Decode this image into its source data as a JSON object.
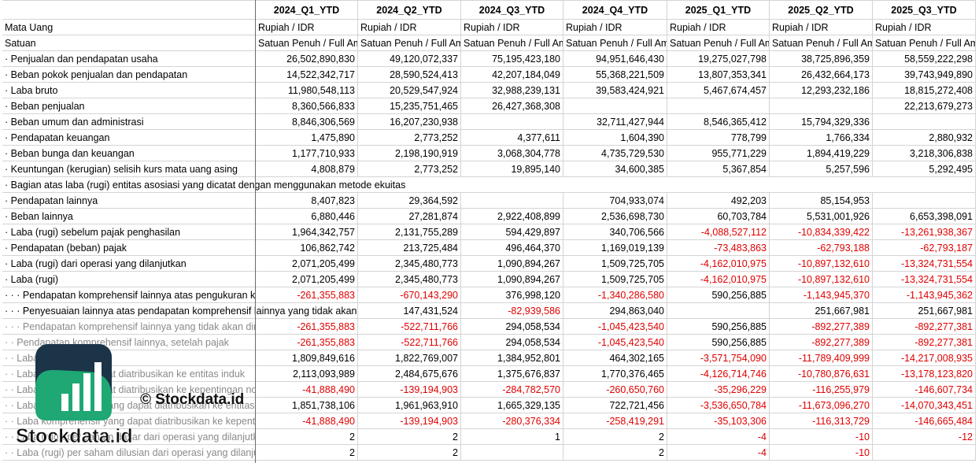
{
  "table": {
    "columns": [
      "2024_Q1_YTD",
      "2024_Q2_YTD",
      "2024_Q3_YTD",
      "2024_Q4_YTD",
      "2025_Q1_YTD",
      "2025_Q2_YTD",
      "2025_Q3_YTD"
    ],
    "rows": [
      {
        "label": "Mata Uang",
        "values": [
          "Rupiah / IDR",
          "Rupiah / IDR",
          "Rupiah / IDR",
          "Rupiah / IDR",
          "Rupiah / IDR",
          "Rupiah / IDR",
          "Rupiah / IDR"
        ]
      },
      {
        "label": "Satuan",
        "values": [
          "Satuan Penuh / Full Amount",
          "Satuan Penuh / Full Amount",
          "Satuan Penuh / Full Amount",
          "Satuan Penuh / Full Amount",
          "Satuan Penuh / Full Amount",
          "Satuan Penuh / Full Amount",
          "Satuan Penuh / Full Amount"
        ]
      },
      {
        "label": "· Penjualan dan pendapatan usaha",
        "values": [
          "26,502,890,830",
          "49,120,072,337",
          "75,195,423,180",
          "94,951,646,430",
          "19,275,027,798",
          "38,725,896,359",
          "58,559,222,298"
        ]
      },
      {
        "label": "· Beban pokok penjualan dan pendapatan",
        "values": [
          "14,522,342,717",
          "28,590,524,413",
          "42,207,184,049",
          "55,368,221,509",
          "13,807,353,341",
          "26,432,664,173",
          "39,743,949,890"
        ]
      },
      {
        "label": "· Laba bruto",
        "values": [
          "11,980,548,113",
          "20,529,547,924",
          "32,988,239,131",
          "39,583,424,921",
          "5,467,674,457",
          "12,293,232,186",
          "18,815,272,408"
        ]
      },
      {
        "label": "· Beban penjualan",
        "values": [
          "8,360,566,833",
          "15,235,751,465",
          "26,427,368,308",
          null,
          null,
          null,
          "22,213,679,273"
        ]
      },
      {
        "label": "· Beban umum dan administrasi",
        "values": [
          "8,846,306,569",
          "16,207,230,938",
          null,
          "32,711,427,944",
          "8,546,365,412",
          "15,794,329,336",
          null
        ]
      },
      {
        "label": "· Pendapatan keuangan",
        "values": [
          "1,475,890",
          "2,773,252",
          "4,377,611",
          "1,604,390",
          "778,799",
          "1,766,334",
          "2,880,932"
        ]
      },
      {
        "label": "· Beban bunga dan keuangan",
        "values": [
          "1,177,710,933",
          "2,198,190,919",
          "3,068,304,778",
          "4,735,729,530",
          "955,771,229",
          "1,894,419,229",
          "3,218,306,838"
        ]
      },
      {
        "label": "· Keuntungan (kerugian) selisih kurs mata uang asing",
        "values": [
          "4,808,879",
          "2,773,252",
          "19,895,140",
          "34,600,385",
          "5,367,854",
          "5,257,596",
          "5,292,495"
        ]
      },
      {
        "label": "· Bagian atas laba (rugi) entitas asosiasi yang dicatat dengan menggunakan metode ekuitas",
        "values": [
          null,
          null,
          null,
          null,
          null,
          null,
          null
        ]
      },
      {
        "label": "· Pendapatan lainnya",
        "values": [
          "8,407,823",
          "29,364,592",
          null,
          "704,933,074",
          "492,203",
          "85,154,953",
          null
        ]
      },
      {
        "label": "· Beban lainnya",
        "values": [
          "6,880,446",
          "27,281,874",
          "2,922,408,899",
          "2,536,698,730",
          "60,703,784",
          "5,531,001,926",
          "6,653,398,091"
        ]
      },
      {
        "label": "· Laba (rugi) sebelum pajak penghasilan",
        "values": [
          "1,964,342,757",
          "2,131,755,289",
          "594,429,897",
          "340,706,566",
          "-4,088,527,112",
          "-10,834,339,422",
          "-13,261,938,367"
        ]
      },
      {
        "label": "· Pendapatan (beban) pajak",
        "values": [
          "106,862,742",
          "213,725,484",
          "496,464,370",
          "1,169,019,139",
          "-73,483,863",
          "-62,793,188",
          "-62,793,187"
        ]
      },
      {
        "label": "· Laba (rugi) dari operasi yang dilanjutkan",
        "values": [
          "2,071,205,499",
          "2,345,480,773",
          "1,090,894,267",
          "1,509,725,705",
          "-4,162,010,975",
          "-10,897,132,610",
          "-13,324,731,554"
        ]
      },
      {
        "label": "· Laba (rugi)",
        "values": [
          "2,071,205,499",
          "2,345,480,773",
          "1,090,894,267",
          "1,509,725,705",
          "-4,162,010,975",
          "-10,897,132,610",
          "-13,324,731,554"
        ]
      },
      {
        "label": "· · · Pendapatan komprehensif lainnya atas pengukuran kembali",
        "values": [
          "-261,355,883",
          "-670,143,290",
          "376,998,120",
          "-1,340,286,580",
          "590,256,885",
          "-1,143,945,370",
          "-1,143,945,362"
        ]
      },
      {
        "label": "· · · Penyesuaian lainnya atas pendapatan komprehensif lainnya yang tidak akan direklasifikasi",
        "values": [
          null,
          "147,431,524",
          "-82,939,586",
          "294,863,040",
          null,
          "251,667,981",
          "251,667,981"
        ]
      },
      {
        "label": "· · · Pendapatan komprehensif lainnya yang tidak akan direklasifikasi",
        "values": [
          "-261,355,883",
          "-522,711,766",
          "294,058,534",
          "-1,045,423,540",
          "590,256,885",
          "-892,277,389",
          "-892,277,381"
        ]
      },
      {
        "label": "· · Pendapatan komprehensif lainnya, setelah pajak",
        "values": [
          "-261,355,883",
          "-522,711,766",
          "294,058,534",
          "-1,045,423,540",
          "590,256,885",
          "-892,277,389",
          "-892,277,381"
        ]
      },
      {
        "label": "· · Laba komprehensif",
        "values": [
          "1,809,849,616",
          "1,822,769,007",
          "1,384,952,801",
          "464,302,165",
          "-3,571,754,090",
          "-11,789,409,999",
          "-14,217,008,935"
        ]
      },
      {
        "label": "· · Laba (rugi) yang dapat diatribusikan ke entitas induk",
        "values": [
          "2,113,093,989",
          "2,484,675,676",
          "1,375,676,837",
          "1,770,376,465",
          "-4,126,714,746",
          "-10,780,876,631",
          "-13,178,123,820"
        ]
      },
      {
        "label": "· · Laba (rugi) yang dapat diatribusikan ke kepentingan non-pengendali",
        "values": [
          "-41,888,490",
          "-139,194,903",
          "-284,782,570",
          "-260,650,760",
          "-35,296,229",
          "-116,255,979",
          "-146,607,734"
        ]
      },
      {
        "label": "· · Laba komprehensif yang dapat diatribusikan ke entitas induk",
        "values": [
          "1,851,738,106",
          "1,961,963,910",
          "1,665,329,135",
          "722,721,456",
          "-3,536,650,784",
          "-11,673,096,270",
          "-14,070,343,451"
        ]
      },
      {
        "label": "· · Laba komprehensif yang dapat diatribusikan ke kepentingan non-pengendali",
        "values": [
          "-41,888,490",
          "-139,194,903",
          "-280,376,334",
          "-258,419,291",
          "-35,103,306",
          "-116,313,729",
          "-146,665,484"
        ]
      },
      {
        "label": "· · Laba (rugi) per saham dasar dari operasi yang dilanjutkan",
        "values": [
          "2",
          "2",
          "1",
          "2",
          "-4",
          "-10",
          "-12"
        ]
      },
      {
        "label": "· · Laba (rugi) per saham dilusian dari operasi yang dilanjutkan",
        "values": [
          "2",
          "2",
          null,
          "2",
          "-4",
          "-10",
          null
        ]
      }
    ]
  },
  "watermark": {
    "caption": "© Stockdata.id",
    "brand": "Stockdata.id"
  }
}
